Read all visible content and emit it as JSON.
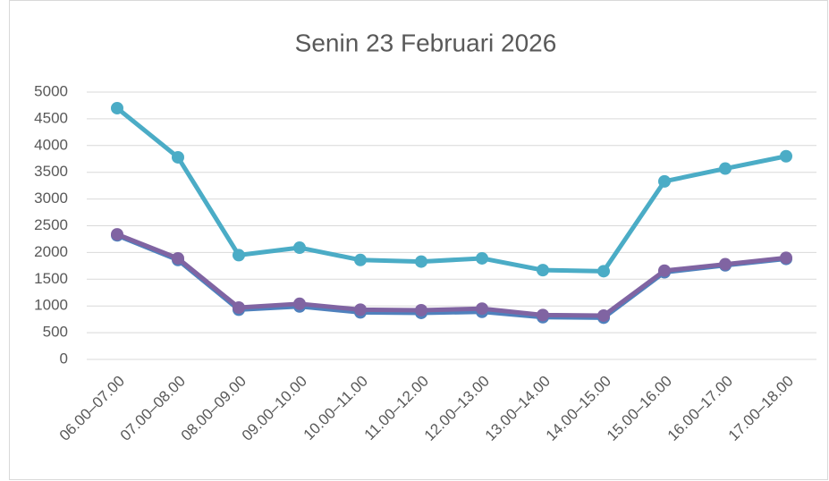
{
  "chart_data": {
    "type": "line",
    "title": "Senin 23 Februari 2026",
    "categories": [
      "06.00–07.00",
      "07.00–08.00",
      "08.00–09.00",
      "09.00–10.00",
      "10.00–11.00",
      "11.00–12.00",
      "12.00–13.00",
      "13.00–14.00",
      "14.00–15.00",
      "15.00–16.00",
      "16.00–17.00",
      "17.00–18.00"
    ],
    "series": [
      {
        "color": "#4bacc6",
        "values": [
          4700,
          3780,
          1950,
          2090,
          1860,
          1830,
          1890,
          1670,
          1650,
          3330,
          3570,
          3800
        ]
      },
      {
        "color": "#4f81bd",
        "values": [
          2320,
          1860,
          930,
          990,
          880,
          870,
          890,
          790,
          780,
          1630,
          1760,
          1880
        ]
      },
      {
        "color": "#8064a2",
        "values": [
          2340,
          1890,
          970,
          1040,
          930,
          920,
          950,
          830,
          820,
          1660,
          1780,
          1900
        ]
      }
    ],
    "ylim": [
      0,
      5000
    ],
    "yticks": [
      0,
      500,
      1000,
      1500,
      2000,
      2500,
      3000,
      3500,
      4000,
      4500,
      5000
    ],
    "grid": true
  }
}
